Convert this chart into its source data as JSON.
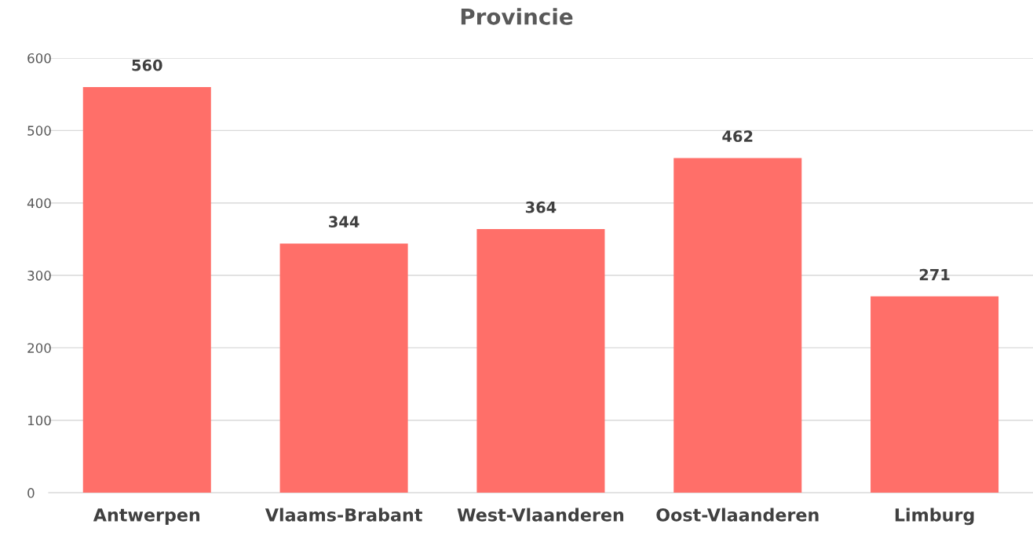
{
  "chart_data": {
    "type": "bar",
    "title": "Provincie",
    "categories": [
      "Antwerpen",
      "Vlaams-Brabant",
      "West-Vlaanderen",
      "Oost-Vlaanderen",
      "Limburg"
    ],
    "values": [
      560,
      344,
      364,
      462,
      271
    ],
    "color": "#ff6f69",
    "ylim": [
      0,
      600
    ],
    "yticks": [
      0,
      100,
      200,
      300,
      400,
      500,
      600
    ],
    "grid": "y",
    "data_labels": true
  }
}
